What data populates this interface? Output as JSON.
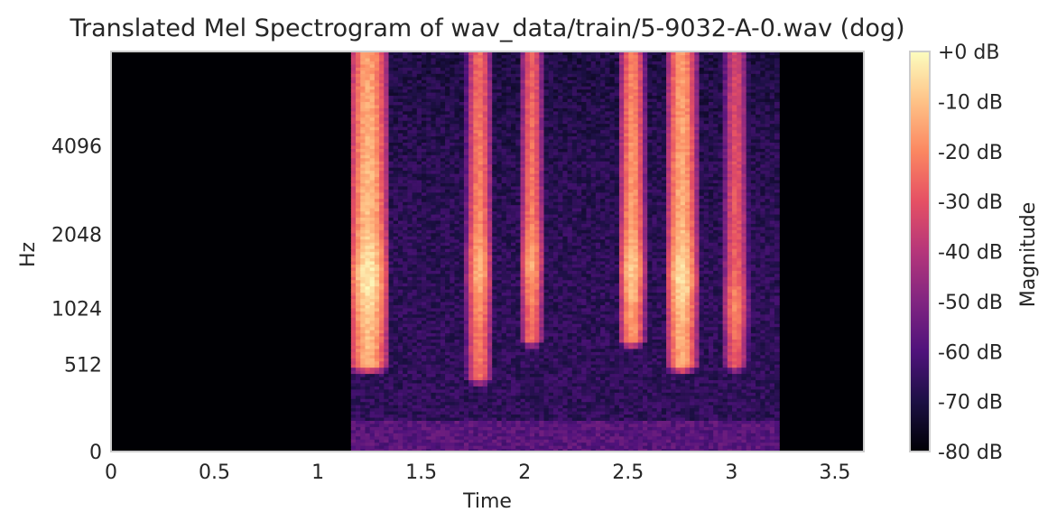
{
  "chart_data": {
    "type": "heatmap",
    "title": "Translated Mel Spectrogram of wav_data/train/5-9032-A-0.wav (dog)",
    "xlabel": "Time",
    "ylabel": "Hz",
    "xlim": [
      0,
      3.64
    ],
    "x_ticks": [
      {
        "value": 0,
        "label": "0"
      },
      {
        "value": 0.5,
        "label": "0.5"
      },
      {
        "value": 1,
        "label": "1"
      },
      {
        "value": 1.5,
        "label": "1.5"
      },
      {
        "value": 2,
        "label": "2"
      },
      {
        "value": 2.5,
        "label": "2.5"
      },
      {
        "value": 3,
        "label": "3"
      },
      {
        "value": 3.5,
        "label": "3.5"
      }
    ],
    "y_scale": "mel",
    "y_ticks": [
      {
        "value": 0,
        "label": "0"
      },
      {
        "value": 512,
        "label": "512"
      },
      {
        "value": 1024,
        "label": "1024"
      },
      {
        "value": 2048,
        "label": "2048"
      },
      {
        "value": 4096,
        "label": "4096"
      }
    ],
    "ylim_hz": [
      0,
      8000
    ],
    "grid": false,
    "colormap": "magma",
    "colormap_stops": [
      "#000004",
      "#1c1044",
      "#4f127b",
      "#812581",
      "#b5367a",
      "#e55064",
      "#fb8761",
      "#fec287",
      "#fcfdbf"
    ],
    "colorbar": {
      "label": "Magnitude",
      "range_db": [
        -80,
        0
      ],
      "ticks": [
        {
          "value": 0,
          "label": "+0 dB"
        },
        {
          "value": -10,
          "label": "-10 dB"
        },
        {
          "value": -20,
          "label": "-20 dB"
        },
        {
          "value": -30,
          "label": "-30 dB"
        },
        {
          "value": -40,
          "label": "-40 dB"
        },
        {
          "value": -50,
          "label": "-50 dB"
        },
        {
          "value": -60,
          "label": "-60 dB"
        },
        {
          "value": -70,
          "label": "-70 dB"
        },
        {
          "value": -80,
          "label": "-80 dB"
        }
      ]
    },
    "signal_span_s": [
      1.15,
      3.22
    ],
    "background_db": -80,
    "noise_floor_db": -66,
    "barks": [
      {
        "start": 1.17,
        "end": 1.32,
        "peak_db": -8,
        "low_hz": 500,
        "formant_hz": 1400
      },
      {
        "start": 1.73,
        "end": 1.83,
        "peak_db": -18,
        "low_hz": 400,
        "formant_hz": 1500
      },
      {
        "start": 1.99,
        "end": 2.08,
        "peak_db": -20,
        "low_hz": 700,
        "formant_hz": 1600
      },
      {
        "start": 2.47,
        "end": 2.57,
        "peak_db": -14,
        "low_hz": 700,
        "formant_hz": 1500
      },
      {
        "start": 2.7,
        "end": 2.82,
        "peak_db": -10,
        "low_hz": 500,
        "formant_hz": 1400
      },
      {
        "start": 2.97,
        "end": 3.07,
        "peak_db": -25,
        "low_hz": 500,
        "formant_hz": 1050
      }
    ]
  }
}
